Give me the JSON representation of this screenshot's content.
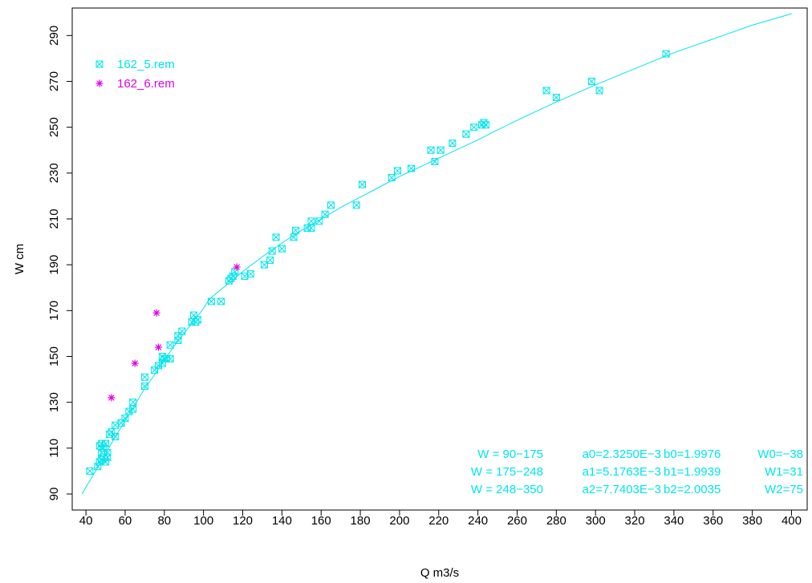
{
  "chart_data": {
    "type": "scatter",
    "xlabel": "Q m3/s",
    "ylabel": "W cm",
    "xlim": [
      33,
      408
    ],
    "ylim": [
      83,
      302
    ],
    "xticks": [
      "40",
      "60",
      "80",
      "100",
      "120",
      "140",
      "160",
      "180",
      "200",
      "220",
      "240",
      "260",
      "280",
      "300",
      "320",
      "340",
      "360",
      "380",
      "400"
    ],
    "yticks": [
      "90",
      "110",
      "130",
      "150",
      "170",
      "190",
      "210",
      "230",
      "250",
      "270",
      "290"
    ],
    "grid": false,
    "legend_position": "top-left",
    "colors": {
      "cyan": "#00E5EE",
      "magenta": "#E000E0",
      "axis": "#000000"
    },
    "series": [
      {
        "name": "162_5.rem",
        "marker": "boxed-x",
        "color": "#00E5EE",
        "points": [
          [
            42,
            100
          ],
          [
            46,
            102
          ],
          [
            47,
            104
          ],
          [
            47,
            111
          ],
          [
            48,
            105
          ],
          [
            48,
            108
          ],
          [
            48,
            112
          ],
          [
            49,
            110
          ],
          [
            49,
            106
          ],
          [
            50,
            104
          ],
          [
            50,
            112
          ],
          [
            51,
            106
          ],
          [
            51,
            108
          ],
          [
            52,
            116
          ],
          [
            53,
            117
          ],
          [
            55,
            115
          ],
          [
            55,
            120
          ],
          [
            58,
            121
          ],
          [
            60,
            123
          ],
          [
            62,
            126
          ],
          [
            64,
            130
          ],
          [
            64,
            127
          ],
          [
            70,
            137
          ],
          [
            70,
            141
          ],
          [
            75,
            144
          ],
          [
            77,
            146
          ],
          [
            79,
            147
          ],
          [
            79,
            150
          ],
          [
            80,
            149
          ],
          [
            81,
            149
          ],
          [
            83,
            155
          ],
          [
            83,
            149
          ],
          [
            87,
            157
          ],
          [
            87,
            159
          ],
          [
            89,
            161
          ],
          [
            94,
            165
          ],
          [
            95,
            168
          ],
          [
            96,
            165
          ],
          [
            97,
            166
          ],
          [
            104,
            174
          ],
          [
            109,
            174
          ],
          [
            113,
            183
          ],
          [
            114,
            184
          ],
          [
            115,
            185
          ],
          [
            116,
            187
          ],
          [
            121,
            185
          ],
          [
            124,
            186
          ],
          [
            131,
            190
          ],
          [
            134,
            192
          ],
          [
            135,
            196
          ],
          [
            137,
            202
          ],
          [
            140,
            197
          ],
          [
            146,
            202
          ],
          [
            147,
            205
          ],
          [
            153,
            206
          ],
          [
            155,
            206
          ],
          [
            155,
            209
          ],
          [
            159,
            209
          ],
          [
            162,
            212
          ],
          [
            165,
            216
          ],
          [
            178,
            216
          ],
          [
            181,
            225
          ],
          [
            196,
            228
          ],
          [
            199,
            231
          ],
          [
            206,
            232
          ],
          [
            216,
            240
          ],
          [
            218,
            235
          ],
          [
            221,
            240
          ],
          [
            227,
            243
          ],
          [
            234,
            247
          ],
          [
            238,
            250
          ],
          [
            242,
            251
          ],
          [
            243,
            252
          ],
          [
            244,
            251
          ],
          [
            275,
            266
          ],
          [
            280,
            263
          ],
          [
            298,
            270
          ],
          [
            302,
            266
          ],
          [
            336,
            282
          ]
        ]
      },
      {
        "name": "162_6.rem",
        "marker": "asterisk",
        "color": "#E000E0",
        "points": [
          [
            53,
            132
          ],
          [
            65,
            147
          ],
          [
            76,
            169
          ],
          [
            77,
            154
          ],
          [
            117,
            189
          ]
        ]
      }
    ],
    "fit_curve": {
      "color": "#00E5EE",
      "points": [
        [
          38,
          90
        ],
        [
          40,
          93
        ],
        [
          45,
          100
        ],
        [
          50,
          107.5
        ],
        [
          55,
          115
        ],
        [
          60,
          122
        ],
        [
          65,
          129
        ],
        [
          70,
          136
        ],
        [
          75,
          142
        ],
        [
          80,
          148.5
        ],
        [
          85,
          154.5
        ],
        [
          90,
          160
        ],
        [
          95,
          165.5
        ],
        [
          100,
          171
        ],
        [
          103,
          175
        ],
        [
          110,
          180
        ],
        [
          120,
          187
        ],
        [
          130,
          193.5
        ],
        [
          140,
          199.5
        ],
        [
          150,
          205
        ],
        [
          160,
          210
        ],
        [
          170,
          215
        ],
        [
          180,
          219.5
        ],
        [
          190,
          224
        ],
        [
          200,
          228.5
        ],
        [
          210,
          232.5
        ],
        [
          220,
          236.5
        ],
        [
          230,
          240.5
        ],
        [
          240,
          244.5
        ],
        [
          248,
          248
        ],
        [
          260,
          253
        ],
        [
          270,
          257
        ],
        [
          280,
          261
        ],
        [
          300,
          268.5
        ],
        [
          320,
          275.5
        ],
        [
          340,
          282.5
        ],
        [
          360,
          288.5
        ],
        [
          380,
          294.5
        ],
        [
          400,
          299.5
        ]
      ]
    },
    "legend": [
      {
        "label": "162_5.rem",
        "color": "#00E5EE",
        "marker": "boxed-x"
      },
      {
        "label": "162_6.rem",
        "color": "#E000E0",
        "marker": "asterisk"
      }
    ],
    "annotations": [
      {
        "range": "W = 90−175",
        "a": "a0=2.3250E−3",
        "b": "b0=1.9976",
        "w": "W0=−38"
      },
      {
        "range": "W = 175−248",
        "a": "a1=5.1763E−3",
        "b": "b1=1.9939",
        "w": "W1=31"
      },
      {
        "range": "W = 248−350",
        "a": "a2=7.7403E−3",
        "b": "b2=2.0035",
        "w": "W2=75"
      }
    ]
  }
}
